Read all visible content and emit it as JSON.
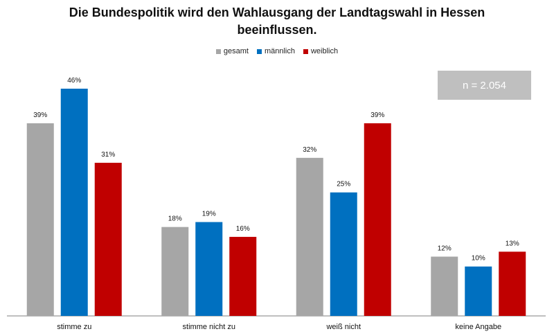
{
  "chart_data": {
    "type": "bar",
    "title": "Die Bundespolitik wird den Wahlausgang der Landtagswahl in Hessen beeinflussen.",
    "categories": [
      "stimme zu",
      "stimme nicht zu",
      "weiß nicht",
      "keine Angabe"
    ],
    "series": [
      {
        "name": "gesamt",
        "values": [
          39,
          18,
          32,
          12
        ],
        "labels": [
          "39%",
          "18%",
          "32%",
          "12%"
        ],
        "color": "#a6a6a6"
      },
      {
        "name": "männlich",
        "values": [
          46,
          19,
          25,
          10
        ],
        "labels": [
          "46%",
          "19%",
          "25%",
          "10%"
        ],
        "color": "#0070c0"
      },
      {
        "name": "weiblich",
        "values": [
          31,
          16,
          39,
          13
        ],
        "labels": [
          "31%",
          "16%",
          "39%",
          "13%"
        ],
        "color": "#c00000"
      }
    ],
    "ylim": [
      0,
      50
    ],
    "grid": false,
    "legend": "top",
    "annotation": "n = 2.054"
  }
}
